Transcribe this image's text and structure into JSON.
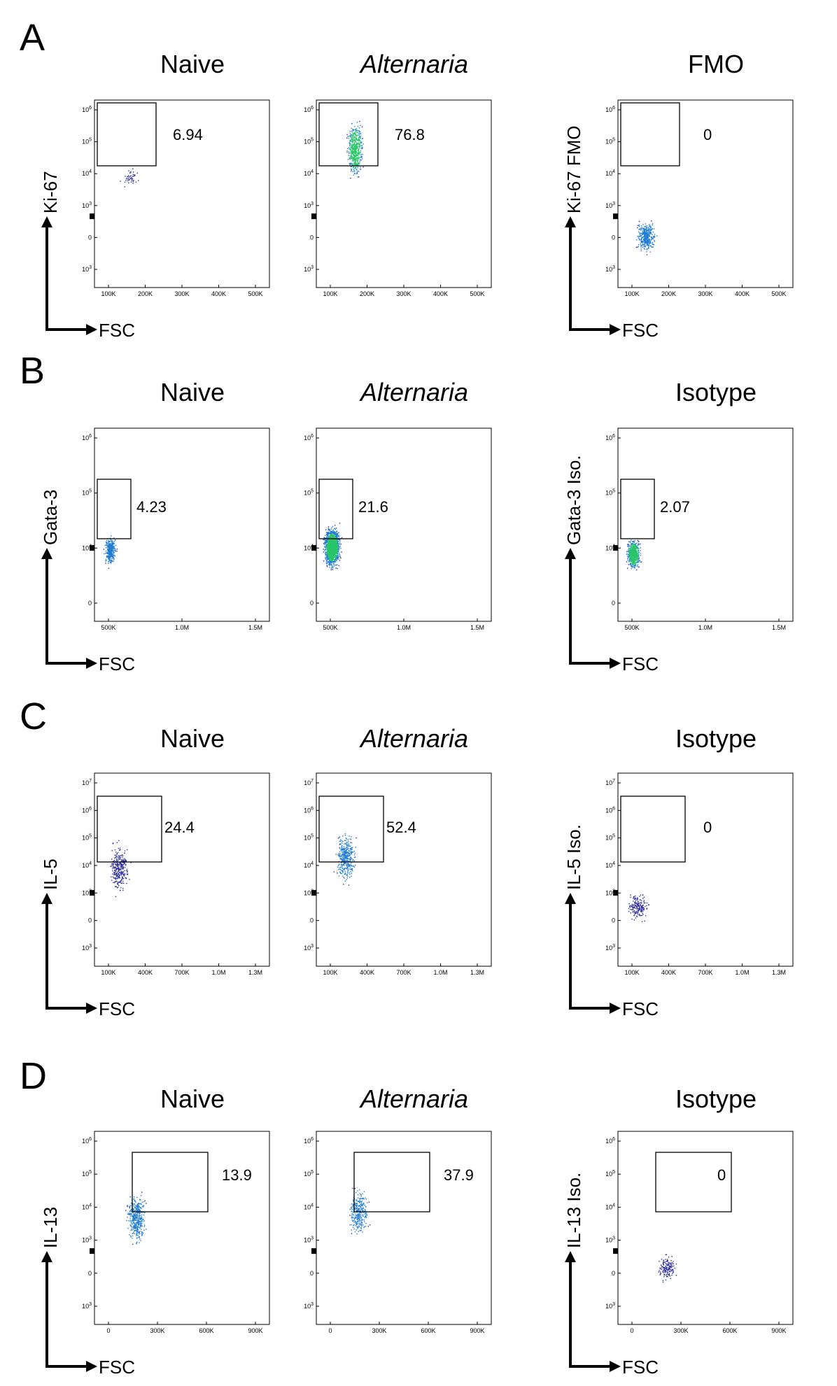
{
  "figure": {
    "panels": [
      {
        "letter": "A",
        "columns": [
          "Naive",
          "Alternaria",
          "FMO"
        ],
        "italic_column": 1,
        "x_label": "FSC",
        "y_labels": [
          "Ki-67",
          "",
          "Ki-67 FMO"
        ],
        "x_ticks": [
          "100K",
          "200K",
          "300K",
          "400K",
          "500K"
        ],
        "y_ticks": [
          "10^6",
          "10^5",
          "10^4",
          "10^3",
          "0",
          "-10^3"
        ]
      },
      {
        "letter": "B",
        "columns": [
          "Naive",
          "Alternaria",
          "Isotype"
        ],
        "italic_column": 1,
        "x_label": "FSC",
        "y_labels": [
          "Gata-3",
          "",
          "Gata-3 Iso."
        ],
        "x_ticks": [
          "500K",
          "1.0M",
          "1.5M"
        ],
        "y_ticks": [
          "10^6",
          "10^5",
          "10^4",
          "0"
        ]
      },
      {
        "letter": "C",
        "columns": [
          "Naive",
          "Alternaria",
          "Isotype"
        ],
        "italic_column": 1,
        "x_label": "FSC",
        "y_labels": [
          "IL-5",
          "",
          "IL-5 Iso."
        ],
        "x_ticks": [
          "100K",
          "400K",
          "700K",
          "1.0M",
          "1.3M"
        ],
        "y_ticks": [
          "10^7",
          "10^6",
          "10^5",
          "10^4",
          "10^3",
          "0",
          "-10^3"
        ]
      },
      {
        "letter": "D",
        "columns": [
          "Naive",
          "Alternaria",
          "Isotype"
        ],
        "italic_column": 1,
        "x_label": "FSC",
        "y_labels": [
          "IL-13",
          "",
          "IL-13 Iso."
        ],
        "x_ticks": [
          "0",
          "300K",
          "600K",
          "900K"
        ],
        "y_ticks": [
          "10^6",
          "10^5",
          "10^4",
          "10^3",
          "0",
          "-10^3"
        ]
      }
    ]
  },
  "chart_data": [
    {
      "type": "scatter",
      "panel": "A",
      "title": "Naive",
      "xlabel": "FSC",
      "ylabel": "Ki-67",
      "gate_percent": "6.94",
      "density": "sparse"
    },
    {
      "type": "scatter",
      "panel": "A",
      "title": "Alternaria",
      "xlabel": "FSC",
      "ylabel": "",
      "gate_percent": "76.8",
      "density": "dense"
    },
    {
      "type": "scatter",
      "panel": "A",
      "title": "FMO",
      "xlabel": "FSC",
      "ylabel": "Ki-67 FMO",
      "gate_percent": "0",
      "density": "medium"
    },
    {
      "type": "scatter",
      "panel": "B",
      "title": "Naive",
      "xlabel": "FSC",
      "ylabel": "Gata-3",
      "gate_percent": "4.23",
      "density": "medium"
    },
    {
      "type": "scatter",
      "panel": "B",
      "title": "Alternaria",
      "xlabel": "FSC",
      "ylabel": "",
      "gate_percent": "21.6",
      "density": "very dense"
    },
    {
      "type": "scatter",
      "panel": "B",
      "title": "Isotype",
      "xlabel": "FSC",
      "ylabel": "Gata-3 Iso.",
      "gate_percent": "2.07",
      "density": "dense"
    },
    {
      "type": "scatter",
      "panel": "C",
      "title": "Naive",
      "xlabel": "FSC",
      "ylabel": "IL-5",
      "gate_percent": "24.4",
      "density": "medium"
    },
    {
      "type": "scatter",
      "panel": "C",
      "title": "Alternaria",
      "xlabel": "FSC",
      "ylabel": "",
      "gate_percent": "52.4",
      "density": "medium"
    },
    {
      "type": "scatter",
      "panel": "C",
      "title": "Isotype",
      "xlabel": "FSC",
      "ylabel": "IL-5 Iso.",
      "gate_percent": "0",
      "density": "sparse"
    },
    {
      "type": "scatter",
      "panel": "D",
      "title": "Naive",
      "xlabel": "FSC",
      "ylabel": "IL-13",
      "gate_percent": "13.9",
      "density": "medium"
    },
    {
      "type": "scatter",
      "panel": "D",
      "title": "Alternaria",
      "xlabel": "FSC",
      "ylabel": "",
      "gate_percent": "37.9",
      "density": "medium"
    },
    {
      "type": "scatter",
      "panel": "D",
      "title": "Isotype",
      "xlabel": "FSC",
      "ylabel": "IL-13 Iso.",
      "gate_percent": "0",
      "density": "sparse"
    }
  ],
  "colors": {
    "dot_sparse": "#2a2a9a",
    "dot_dense": "#1e7bd0",
    "dot_hot": "#29c46a",
    "frame": "#000000"
  }
}
